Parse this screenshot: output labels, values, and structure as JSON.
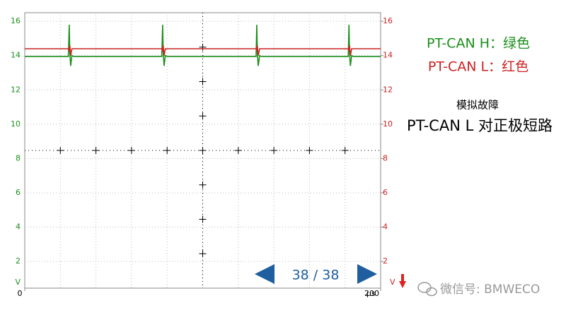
{
  "chart_data": {
    "type": "line",
    "x": [
      0,
      24.5,
      25,
      25.3,
      25.8,
      26.5,
      27.5,
      77,
      77.5,
      77.8,
      78.3,
      79,
      80,
      130,
      130.4,
      130.7,
      131.2,
      132,
      133,
      181.8,
      182.2,
      182.5,
      183,
      183.7,
      184.7,
      200
    ],
    "series": [
      {
        "name": "PT-CAN H：绿色",
        "color": "#1a8f1a",
        "values": [
          13.95,
          13.95,
          15.8,
          14.2,
          13.4,
          14.0,
          13.95,
          13.95,
          15.8,
          14.2,
          13.4,
          14.0,
          13.95,
          13.95,
          15.8,
          14.2,
          13.4,
          14.0,
          13.95,
          13.95,
          15.8,
          14.2,
          13.4,
          14.0,
          13.95,
          13.95
        ]
      },
      {
        "name": "PT-CAN L：红色",
        "color": "#cc2222",
        "axis": "y2",
        "values": [
          14.4,
          14.4,
          14.3,
          14.6,
          14.0,
          14.4,
          14.4,
          14.4,
          14.3,
          14.6,
          14.0,
          14.4,
          14.4,
          14.4,
          14.3,
          14.6,
          14.0,
          14.4,
          14.4,
          14.4,
          14.3,
          14.6,
          14.0,
          14.4,
          14.4,
          14.4
        ]
      }
    ],
    "xlim": [
      0,
      200
    ],
    "xticks": [
      0,
      200
    ],
    "x_unit": "µs",
    "x_divisions": 10,
    "ylim": [
      0.44,
      16.5
    ],
    "yticks": [
      2,
      4,
      6,
      8,
      10,
      12,
      14,
      16
    ],
    "y_unit": "V",
    "y2lim": [
      0.44,
      16.5
    ],
    "y2ticks": [
      2,
      4,
      6,
      8,
      10,
      12,
      14,
      16
    ],
    "y2_unit": "V",
    "grid": true,
    "annotations": [
      "模拟故障",
      "PT-CAN L 对正极短路"
    ],
    "page_indicator": "38 / 38",
    "watermark": "微信号: BMWECO"
  }
}
